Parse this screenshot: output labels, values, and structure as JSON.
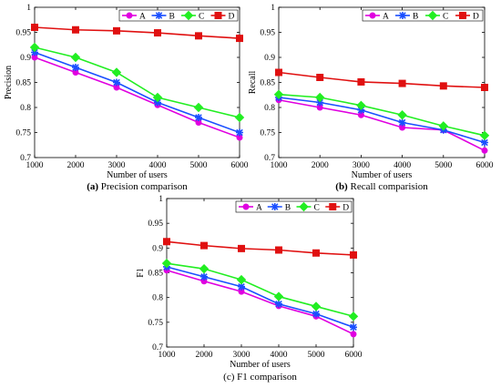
{
  "chart_data": [
    {
      "type": "line",
      "id": "precision",
      "caption_bold": "(a)",
      "caption_rest": " Precision comparison",
      "xlabel": "Number of users",
      "ylabel": "Precision",
      "x": [
        1000,
        2000,
        3000,
        4000,
        5000,
        6000
      ],
      "xlim": [
        1000,
        6000
      ],
      "ylim": [
        0.7,
        1.0
      ],
      "xticks": [
        "1000",
        "2000",
        "3000",
        "4000",
        "5000",
        "6000"
      ],
      "yticks": [
        "0.7",
        "0.75",
        "0.8",
        "0.85",
        "0.9",
        "0.95",
        "1"
      ],
      "legend": "top-right",
      "grid": false,
      "series": [
        {
          "name": "A",
          "color": "#e000e0",
          "marker": "circle",
          "values": [
            0.9,
            0.87,
            0.84,
            0.805,
            0.77,
            0.74
          ]
        },
        {
          "name": "B",
          "color": "#1a4fff",
          "marker": "star",
          "values": [
            0.91,
            0.88,
            0.85,
            0.81,
            0.78,
            0.75
          ]
        },
        {
          "name": "C",
          "color": "#22ee22",
          "marker": "diamond",
          "values": [
            0.92,
            0.9,
            0.87,
            0.82,
            0.8,
            0.78
          ]
        },
        {
          "name": "D",
          "color": "#e01010",
          "marker": "square",
          "values": [
            0.96,
            0.955,
            0.953,
            0.949,
            0.943,
            0.938
          ]
        }
      ]
    },
    {
      "type": "line",
      "id": "recall",
      "caption_bold": "(b)",
      "caption_rest": " Recall comparision",
      "xlabel": "Number of users",
      "ylabel": "Recall",
      "x": [
        1000,
        2000,
        3000,
        4000,
        5000,
        6000
      ],
      "xlim": [
        1000,
        6000
      ],
      "ylim": [
        0.7,
        1.0
      ],
      "xticks": [
        "1000",
        "2000",
        "3000",
        "4000",
        "5000",
        "6000"
      ],
      "yticks": [
        "0.7",
        "0.75",
        "0.8",
        "0.85",
        "0.9",
        "0.95",
        "1"
      ],
      "legend": "top-right",
      "grid": false,
      "series": [
        {
          "name": "A",
          "color": "#e000e0",
          "marker": "circle",
          "values": [
            0.815,
            0.8,
            0.785,
            0.76,
            0.755,
            0.714
          ]
        },
        {
          "name": "B",
          "color": "#1a4fff",
          "marker": "star",
          "values": [
            0.82,
            0.81,
            0.795,
            0.77,
            0.755,
            0.73
          ]
        },
        {
          "name": "C",
          "color": "#22ee22",
          "marker": "diamond",
          "values": [
            0.826,
            0.82,
            0.804,
            0.785,
            0.763,
            0.744
          ]
        },
        {
          "name": "D",
          "color": "#e01010",
          "marker": "square",
          "values": [
            0.87,
            0.86,
            0.851,
            0.848,
            0.843,
            0.84
          ]
        }
      ]
    },
    {
      "type": "line",
      "id": "f1",
      "caption_bold": "",
      "caption_rest": "(c) F1 comparison",
      "xlabel": "Number of users",
      "ylabel": "F1",
      "x": [
        1000,
        2000,
        3000,
        4000,
        5000,
        6000
      ],
      "xlim": [
        1000,
        6000
      ],
      "ylim": [
        0.7,
        1.0
      ],
      "xticks": [
        "1000",
        "2000",
        "3000",
        "4000",
        "5000",
        "6000"
      ],
      "yticks": [
        "0.7",
        "0.75",
        "0.8",
        "0.85",
        "0.9",
        "0.95",
        "1"
      ],
      "legend": "top-right",
      "grid": false,
      "series": [
        {
          "name": "A",
          "color": "#e000e0",
          "marker": "circle",
          "values": [
            0.855,
            0.833,
            0.812,
            0.783,
            0.762,
            0.726
          ]
        },
        {
          "name": "B",
          "color": "#1a4fff",
          "marker": "star",
          "values": [
            0.862,
            0.842,
            0.822,
            0.787,
            0.767,
            0.74
          ]
        },
        {
          "name": "C",
          "color": "#22ee22",
          "marker": "diamond",
          "values": [
            0.869,
            0.858,
            0.836,
            0.802,
            0.782,
            0.762
          ]
        },
        {
          "name": "D",
          "color": "#e01010",
          "marker": "square",
          "values": [
            0.913,
            0.905,
            0.899,
            0.896,
            0.89,
            0.886
          ]
        }
      ]
    }
  ]
}
